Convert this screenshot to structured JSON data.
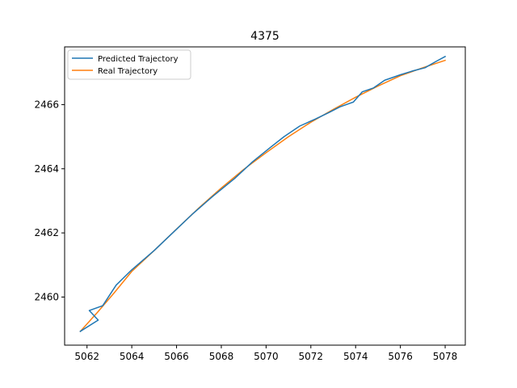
{
  "chart_data": {
    "type": "line",
    "title": "4375",
    "xlabel": "",
    "ylabel": "",
    "xlim": [
      5061.0,
      5078.9
    ],
    "ylim": [
      2458.5,
      2467.8
    ],
    "xticks": [
      5062,
      5064,
      5066,
      5068,
      5070,
      5072,
      5074,
      5076,
      5078
    ],
    "yticks": [
      2460,
      2462,
      2464,
      2466
    ],
    "grid": false,
    "legend_position": "top-left",
    "series": [
      {
        "name": "Predicted Trajectory",
        "color": "#1f77b4",
        "x": [
          5061.7,
          5062.5,
          5062.1,
          5062.7,
          5063.3,
          5064.0,
          5065.0,
          5065.9,
          5066.7,
          5067.6,
          5068.6,
          5069.4,
          5070.2,
          5070.8,
          5071.5,
          5072.2,
          5072.8,
          5073.3,
          5073.9,
          5074.3,
          5074.8,
          5075.3,
          5076.0,
          5076.6,
          5077.1,
          5077.6,
          5078.0
        ],
        "y": [
          2458.93,
          2459.28,
          2459.58,
          2459.73,
          2460.37,
          2460.85,
          2461.45,
          2462.05,
          2462.58,
          2463.13,
          2463.7,
          2464.22,
          2464.67,
          2465.0,
          2465.33,
          2465.55,
          2465.75,
          2465.93,
          2466.08,
          2466.4,
          2466.52,
          2466.76,
          2466.93,
          2467.06,
          2467.15,
          2467.35,
          2467.5
        ]
      },
      {
        "name": "Real Trajectory",
        "color": "#ff7f0e",
        "x": [
          5061.7,
          5062.5,
          5063.2,
          5064.0,
          5065.0,
          5066.0,
          5067.0,
          5068.0,
          5069.0,
          5070.0,
          5071.0,
          5072.0,
          5073.0,
          5074.0,
          5075.0,
          5076.0,
          5077.0,
          5078.0
        ],
        "y": [
          2458.93,
          2459.55,
          2460.12,
          2460.8,
          2461.45,
          2462.12,
          2462.78,
          2463.4,
          2463.98,
          2464.5,
          2465.0,
          2465.45,
          2465.85,
          2466.23,
          2466.58,
          2466.9,
          2467.15,
          2467.38
        ]
      }
    ]
  }
}
